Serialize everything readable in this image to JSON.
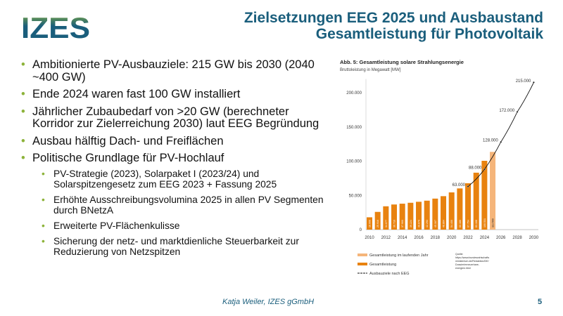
{
  "logo": {
    "text": "IZES",
    "colors": {
      "primary": "#1a5e7c",
      "accent": "#8db33a"
    }
  },
  "title": {
    "line1": "Zielsetzungen EEG 2025 und Ausbaustand",
    "line2": "Gesamtleistung für Photovoltaik"
  },
  "bullets": [
    {
      "level": 1,
      "text": "Ambitionierte PV-Ausbauziele: 215 GW bis 2030 (2040 ~400 GW)"
    },
    {
      "level": 1,
      "text": "Ende 2024 waren fast 100 GW installiert"
    },
    {
      "level": 1,
      "text": "Jährlicher Zubaubedarf von >20 GW (berechneter Korridor zur Zielerreichung 2030) laut EEG Begründung"
    },
    {
      "level": 1,
      "text": "Ausbau hälftig Dach- und Freiflächen"
    },
    {
      "level": 1,
      "text": "Politische Grundlage für PV-Hochlauf"
    },
    {
      "level": 2,
      "text": "PV-Strategie (2023), Solarpaket I (2023/24) und Solarspitzengesetz zum EEG 2023 + Fassung 2025"
    },
    {
      "level": 2,
      "text": "Erhöhte Ausschreibungsvolumina 2025 in allen PV Segmenten durch BNetzA"
    },
    {
      "level": 2,
      "text": "Erweiterte PV-Flächenkulisse"
    },
    {
      "level": 2,
      "text": "Sicherung der netz- und marktdienliche Steuerbarkeit zur Reduzierung von Netzspitzen"
    }
  ],
  "chart_data": {
    "type": "bar",
    "title": "Abb. 5: Gesamtleistung solare Strahlungsenergie",
    "subtitle": "Bruttoleistung in Megawatt [MW]",
    "ylim": [
      0,
      220000
    ],
    "yticks": [
      "0",
      "50.000",
      "100.000",
      "150.000",
      "200.000"
    ],
    "ytick_values": [
      0,
      50000,
      100000,
      150000,
      200000
    ],
    "xticks": [
      "2010",
      "2012",
      "2014",
      "2016",
      "2018",
      "2020",
      "2022",
      "2024",
      "2026",
      "2028",
      "2030"
    ],
    "xtick_values": [
      2010,
      2012,
      2014,
      2016,
      2018,
      2020,
      2022,
      2024,
      2026,
      2028,
      2030
    ],
    "grid": false,
    "series": [
      {
        "name": "Gesamtleistung",
        "color": "#e8820f",
        "x": [
          2010,
          2011,
          2012,
          2013,
          2014,
          2015,
          2016,
          2017,
          2018,
          2019,
          2020,
          2021,
          2022,
          2023,
          2024
        ],
        "values": [
          18006,
          25916,
          34077,
          36710,
          37900,
          39224,
          40679,
          42293,
          45307,
          48864,
          54400,
          60180,
          67754,
          83168,
          100531
        ],
        "labels": [
          "18.006",
          "25.916",
          "34.077",
          "36.710",
          "37.900",
          "39.224",
          "40.679",
          "42.293",
          "45.307",
          "48.864",
          "54.400",
          "60.180",
          "67.754",
          "83.168",
          "100.531"
        ]
      },
      {
        "name": "Gesamtleistung im laufenden Jahr",
        "color": "#f5b57a",
        "x": [
          2025
        ],
        "values": [
          113569
        ],
        "labels": [
          "113.569"
        ]
      },
      {
        "name": "Ausbauziele nach EEG",
        "type": "line",
        "color": "#111111",
        "x": [
          2022,
          2024,
          2026,
          2028,
          2030
        ],
        "values": [
          63000,
          88000,
          128000,
          172000,
          215000
        ],
        "labels": [
          "63.000",
          "88.000",
          "128.000",
          "172.000",
          "215.000"
        ]
      }
    ],
    "legend_position": "bottom-left",
    "source": [
      "Quelle:",
      "https://www.bundeswirtschafts",
      "ministerium.de/Redaktion/DE/",
      "Dossier/erneuerbare-",
      "energien.html"
    ]
  },
  "footer": {
    "author": "Katja Weiler, IZES gGmbH",
    "page": "5"
  }
}
